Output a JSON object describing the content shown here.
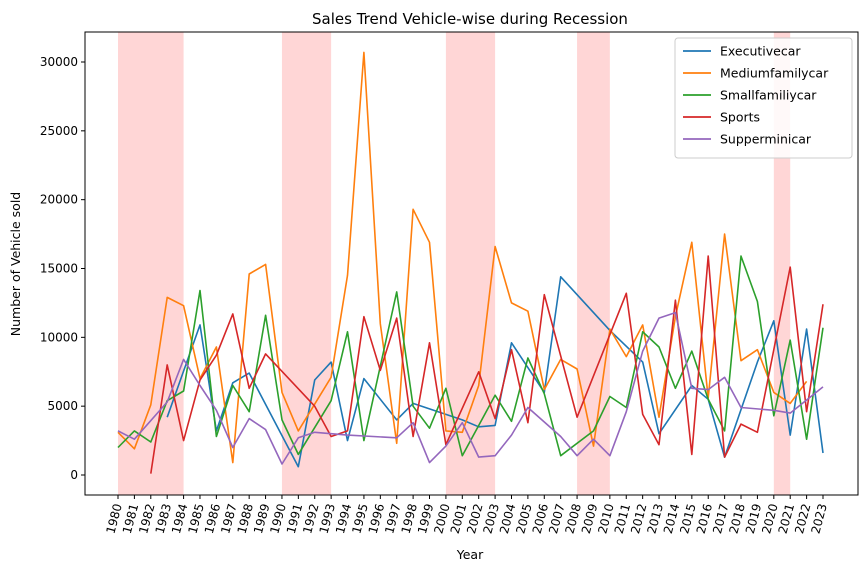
{
  "chart_data": {
    "type": "line",
    "title": "Sales Trend Vehicle-wise during Recession",
    "xlabel": "Year",
    "ylabel": "Number of Vehicle sold",
    "ylim": [
      -1000,
      32000
    ],
    "yticks": [
      0,
      5000,
      10000,
      15000,
      20000,
      25000,
      30000
    ],
    "x": [
      1980,
      1981,
      1982,
      1983,
      1984,
      1985,
      1986,
      1987,
      1988,
      1989,
      1990,
      1991,
      1992,
      1993,
      1994,
      1995,
      1996,
      1997,
      1998,
      1999,
      2000,
      2001,
      2002,
      2003,
      2004,
      2005,
      2006,
      2007,
      2008,
      2009,
      2010,
      2011,
      2012,
      2013,
      2014,
      2015,
      2016,
      2017,
      2018,
      2019,
      2020,
      2021,
      2022,
      2023
    ],
    "recession_periods": [
      [
        1980,
        1984
      ],
      [
        1990,
        1993
      ],
      [
        2000,
        2003
      ],
      [
        2008,
        2010
      ],
      [
        2020,
        2021
      ]
    ],
    "legend_position": "upper right",
    "series": [
      {
        "name": "Executivecar",
        "color": "#1f77b4",
        "points": [
          [
            1983,
            4200
          ],
          [
            1985,
            10900
          ],
          [
            1986,
            3200
          ],
          [
            1987,
            6700
          ],
          [
            1988,
            7400
          ],
          [
            1991,
            600
          ],
          [
            1992,
            6900
          ],
          [
            1993,
            8200
          ],
          [
            1994,
            2500
          ],
          [
            1995,
            7000
          ],
          [
            1997,
            4000
          ],
          [
            1998,
            5200
          ],
          [
            2001,
            4000
          ],
          [
            2002,
            3500
          ],
          [
            2003,
            3600
          ],
          [
            2004,
            9600
          ],
          [
            2006,
            6000
          ],
          [
            2007,
            14400
          ],
          [
            2010,
            10500
          ],
          [
            2012,
            8200
          ],
          [
            2013,
            3000
          ],
          [
            2015,
            6500
          ],
          [
            2016,
            5500
          ],
          [
            2017,
            1300
          ],
          [
            2019,
            8200
          ],
          [
            2020,
            11200
          ],
          [
            2021,
            2900
          ],
          [
            2022,
            10600
          ],
          [
            2023,
            1600
          ]
        ]
      },
      {
        "name": "Mediumfamilycar",
        "color": "#ff7f0e",
        "points": [
          [
            1980,
            3100
          ],
          [
            1981,
            1900
          ],
          [
            1982,
            5100
          ],
          [
            1983,
            12900
          ],
          [
            1984,
            12300
          ],
          [
            1985,
            7000
          ],
          [
            1986,
            9300
          ],
          [
            1987,
            900
          ],
          [
            1988,
            14600
          ],
          [
            1989,
            15300
          ],
          [
            1990,
            6000
          ],
          [
            1991,
            3200
          ],
          [
            1993,
            7100
          ],
          [
            1994,
            14500
          ],
          [
            1995,
            30700
          ],
          [
            1996,
            11000
          ],
          [
            1997,
            2300
          ],
          [
            1998,
            19300
          ],
          [
            1999,
            16900
          ],
          [
            2000,
            3200
          ],
          [
            2001,
            3100
          ],
          [
            2002,
            6500
          ],
          [
            2003,
            16600
          ],
          [
            2004,
            12500
          ],
          [
            2005,
            11900
          ],
          [
            2006,
            6200
          ],
          [
            2007,
            8400
          ],
          [
            2008,
            7700
          ],
          [
            2009,
            2100
          ],
          [
            2010,
            10600
          ],
          [
            2011,
            8600
          ],
          [
            2012,
            10900
          ],
          [
            2013,
            4200
          ],
          [
            2014,
            11500
          ],
          [
            2015,
            16900
          ],
          [
            2016,
            5600
          ],
          [
            2017,
            17500
          ],
          [
            2018,
            8300
          ],
          [
            2019,
            9100
          ],
          [
            2020,
            6000
          ],
          [
            2021,
            5200
          ],
          [
            2022,
            6800
          ]
        ]
      },
      {
        "name": "Smallfamiliycar",
        "color": "#2ca02c",
        "points": [
          [
            1980,
            2000
          ],
          [
            1981,
            3200
          ],
          [
            1982,
            2400
          ],
          [
            1983,
            5400
          ],
          [
            1984,
            6100
          ],
          [
            1985,
            13400
          ],
          [
            1986,
            2800
          ],
          [
            1987,
            6500
          ],
          [
            1988,
            4600
          ],
          [
            1989,
            11600
          ],
          [
            1990,
            4000
          ],
          [
            1991,
            1500
          ],
          [
            1993,
            5400
          ],
          [
            1994,
            10400
          ],
          [
            1995,
            2500
          ],
          [
            1997,
            13300
          ],
          [
            1998,
            5000
          ],
          [
            1999,
            3400
          ],
          [
            2000,
            6300
          ],
          [
            2001,
            1400
          ],
          [
            2003,
            5800
          ],
          [
            2004,
            3900
          ],
          [
            2005,
            8500
          ],
          [
            2006,
            5900
          ],
          [
            2007,
            1400
          ],
          [
            2009,
            3200
          ],
          [
            2010,
            5700
          ],
          [
            2011,
            4900
          ],
          [
            2012,
            10400
          ],
          [
            2013,
            9300
          ],
          [
            2014,
            6300
          ],
          [
            2015,
            9000
          ],
          [
            2016,
            5500
          ],
          [
            2017,
            3200
          ],
          [
            2018,
            15900
          ],
          [
            2019,
            12600
          ],
          [
            2020,
            4300
          ],
          [
            2021,
            9800
          ],
          [
            2022,
            2600
          ],
          [
            2023,
            10700
          ]
        ]
      },
      {
        "name": "Sports",
        "color": "#d62728",
        "points": [
          [
            1982,
            100
          ],
          [
            1983,
            8000
          ],
          [
            1984,
            2500
          ],
          [
            1985,
            6900
          ],
          [
            1986,
            8700
          ],
          [
            1987,
            11700
          ],
          [
            1988,
            6300
          ],
          [
            1989,
            8800
          ],
          [
            1992,
            5000
          ],
          [
            1993,
            2800
          ],
          [
            1994,
            3200
          ],
          [
            1995,
            11500
          ],
          [
            1996,
            7600
          ],
          [
            1997,
            11400
          ],
          [
            1998,
            2800
          ],
          [
            1999,
            9600
          ],
          [
            2000,
            2200
          ],
          [
            2002,
            7500
          ],
          [
            2003,
            4100
          ],
          [
            2004,
            9100
          ],
          [
            2005,
            3800
          ],
          [
            2006,
            13100
          ],
          [
            2008,
            4200
          ],
          [
            2011,
            13200
          ],
          [
            2012,
            4400
          ],
          [
            2013,
            2200
          ],
          [
            2014,
            12700
          ],
          [
            2015,
            1500
          ],
          [
            2016,
            15900
          ],
          [
            2017,
            1300
          ],
          [
            2018,
            3700
          ],
          [
            2019,
            3100
          ],
          [
            2021,
            15100
          ],
          [
            2022,
            4600
          ],
          [
            2023,
            12400
          ]
        ]
      },
      {
        "name": "Supperminicar",
        "color": "#9467bd",
        "points": [
          [
            1980,
            3200
          ],
          [
            1981,
            2600
          ],
          [
            1983,
            5300
          ],
          [
            1984,
            8400
          ],
          [
            1985,
            6500
          ],
          [
            1986,
            4700
          ],
          [
            1987,
            2000
          ],
          [
            1988,
            4100
          ],
          [
            1989,
            3300
          ],
          [
            1990,
            800
          ],
          [
            1991,
            2700
          ],
          [
            1992,
            3100
          ],
          [
            1994,
            2900
          ],
          [
            1997,
            2700
          ],
          [
            1998,
            3800
          ],
          [
            1999,
            900
          ],
          [
            2000,
            2100
          ],
          [
            2001,
            3800
          ],
          [
            2002,
            1300
          ],
          [
            2003,
            1400
          ],
          [
            2004,
            2900
          ],
          [
            2005,
            4900
          ],
          [
            2007,
            2800
          ],
          [
            2008,
            1400
          ],
          [
            2009,
            2600
          ],
          [
            2010,
            1400
          ],
          [
            2011,
            4600
          ],
          [
            2012,
            9000
          ],
          [
            2013,
            11400
          ],
          [
            2014,
            11800
          ],
          [
            2015,
            6300
          ],
          [
            2016,
            6200
          ],
          [
            2017,
            7100
          ],
          [
            2018,
            4900
          ],
          [
            2020,
            4700
          ],
          [
            2021,
            4500
          ],
          [
            2023,
            6400
          ]
        ]
      }
    ]
  }
}
